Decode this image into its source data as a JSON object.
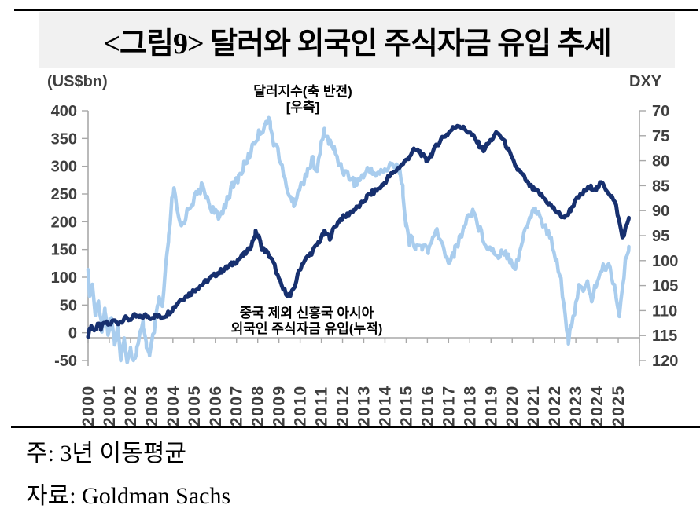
{
  "title": "<그림9> 달러와 외국인 주식자금 유입 추세",
  "footer": {
    "note": "주: 3년 이동평균",
    "source": "자료: Goldman Sachs"
  },
  "chart_data": {
    "type": "line",
    "title": "<그림9> 달러와 외국인 주식자금 유입 추세",
    "grid": false,
    "left_axis": {
      "title": "(US$bn)",
      "ticks": [
        400,
        350,
        300,
        250,
        200,
        150,
        100,
        50,
        0,
        -50
      ],
      "range": [
        -50,
        400
      ]
    },
    "right_axis": {
      "title": "DXY",
      "ticks": [
        70,
        75,
        80,
        85,
        90,
        95,
        100,
        105,
        110,
        115,
        120
      ],
      "range": [
        70,
        120
      ],
      "inverted": true
    },
    "x_axis": {
      "labels": [
        "2000",
        "2001",
        "2002",
        "2003",
        "2004",
        "2005",
        "2006",
        "2007",
        "2008",
        "2009",
        "2010",
        "2011",
        "2012",
        "2013",
        "2014",
        "2015",
        "2016",
        "2017",
        "2018",
        "2019",
        "2020",
        "2021",
        "2022",
        "2023",
        "2024",
        "2025"
      ],
      "range": [
        2000,
        2026
      ]
    },
    "colors": {
      "dollar_index": "#a9cdee",
      "flows": "#17306f",
      "legend_blue_text": "#85b2e2",
      "axis": "#a8a8a8",
      "axis_text": "#3f3f3f"
    },
    "series": [
      {
        "name": "달러지수(축 반전) [우측]",
        "label_lines": [
          "달러지수(축 반전)",
          "[우측]"
        ],
        "axis": "right",
        "unit": "DXY index (inverted axis)",
        "color": "#a9cdee",
        "points": [
          [
            2000.0,
            102.8
          ],
          [
            2000.1,
            107.8
          ],
          [
            2000.2,
            105.0
          ],
          [
            2000.35,
            111.1
          ],
          [
            2000.5,
            107.8
          ],
          [
            2000.65,
            113.3
          ],
          [
            2000.8,
            109.4
          ],
          [
            2000.95,
            115.0
          ],
          [
            2001.1,
            111.1
          ],
          [
            2001.25,
            117.2
          ],
          [
            2001.4,
            113.9
          ],
          [
            2001.55,
            119.4
          ],
          [
            2001.7,
            116.1
          ],
          [
            2001.85,
            120.3
          ],
          [
            2002.0,
            117.2
          ],
          [
            2002.15,
            120.3
          ],
          [
            2002.3,
            117.8
          ],
          [
            2002.45,
            115.0
          ],
          [
            2002.6,
            112.8
          ],
          [
            2002.75,
            116.7
          ],
          [
            2002.9,
            119.4
          ],
          [
            2003.05,
            115.6
          ],
          [
            2003.2,
            111.7
          ],
          [
            2003.35,
            107.8
          ],
          [
            2003.5,
            109.4
          ],
          [
            2003.65,
            102.2
          ],
          [
            2003.8,
            95.6
          ],
          [
            2003.95,
            88.3
          ],
          [
            2004.05,
            85.6
          ],
          [
            2004.2,
            90.6
          ],
          [
            2004.4,
            93.3
          ],
          [
            2004.6,
            91.1
          ],
          [
            2004.8,
            89.1
          ],
          [
            2004.95,
            88.0
          ],
          [
            2005.15,
            86.7
          ],
          [
            2005.35,
            85.3
          ],
          [
            2005.55,
            86.7
          ],
          [
            2005.75,
            88.9
          ],
          [
            2005.95,
            90.2
          ],
          [
            2006.15,
            91.7
          ],
          [
            2006.35,
            89.8
          ],
          [
            2006.6,
            87.2
          ],
          [
            2006.85,
            84.9
          ],
          [
            2007.1,
            83.3
          ],
          [
            2007.35,
            81.1
          ],
          [
            2007.6,
            78.9
          ],
          [
            2007.85,
            76.1
          ],
          [
            2008.05,
            74.7
          ],
          [
            2008.25,
            73.4
          ],
          [
            2008.45,
            71.7
          ],
          [
            2008.6,
            73.1
          ],
          [
            2008.75,
            76.1
          ],
          [
            2008.95,
            77.8
          ],
          [
            2009.15,
            81.7
          ],
          [
            2009.35,
            85.3
          ],
          [
            2009.55,
            87.2
          ],
          [
            2009.7,
            88.7
          ],
          [
            2009.9,
            86.1
          ],
          [
            2010.1,
            84.7
          ],
          [
            2010.35,
            81.7
          ],
          [
            2010.6,
            80.0
          ],
          [
            2010.8,
            82.2
          ],
          [
            2011.0,
            76.7
          ],
          [
            2011.15,
            74.2
          ],
          [
            2011.35,
            76.1
          ],
          [
            2011.6,
            77.8
          ],
          [
            2011.85,
            80.6
          ],
          [
            2012.1,
            82.2
          ],
          [
            2012.35,
            83.3
          ],
          [
            2012.6,
            84.4
          ],
          [
            2012.85,
            83.6
          ],
          [
            2013.1,
            82.4
          ],
          [
            2013.35,
            81.7
          ],
          [
            2013.6,
            82.8
          ],
          [
            2013.85,
            82.2
          ],
          [
            2014.1,
            81.6
          ],
          [
            2014.35,
            80.9
          ],
          [
            2014.55,
            80.6
          ],
          [
            2014.7,
            82.2
          ],
          [
            2014.85,
            86.1
          ],
          [
            2015.0,
            92.8
          ],
          [
            2015.15,
            96.7
          ],
          [
            2015.3,
            95.0
          ],
          [
            2015.45,
            98.0
          ],
          [
            2015.6,
            96.7
          ],
          [
            2015.75,
            97.8
          ],
          [
            2015.9,
            96.9
          ],
          [
            2016.05,
            98.0
          ],
          [
            2016.25,
            96.1
          ],
          [
            2016.45,
            93.9
          ],
          [
            2016.65,
            96.4
          ],
          [
            2016.85,
            98.9
          ],
          [
            2017.05,
            100.0
          ],
          [
            2017.3,
            98.0
          ],
          [
            2017.55,
            95.3
          ],
          [
            2017.8,
            92.4
          ],
          [
            2018.0,
            90.6
          ],
          [
            2018.15,
            89.8
          ],
          [
            2018.35,
            92.4
          ],
          [
            2018.55,
            94.7
          ],
          [
            2018.75,
            96.4
          ],
          [
            2018.95,
            97.6
          ],
          [
            2019.15,
            98.2
          ],
          [
            2019.35,
            98.9
          ],
          [
            2019.55,
            97.8
          ],
          [
            2019.75,
            98.7
          ],
          [
            2019.95,
            99.8
          ],
          [
            2020.15,
            101.3
          ],
          [
            2020.35,
            98.3
          ],
          [
            2020.55,
            95.0
          ],
          [
            2020.75,
            92.2
          ],
          [
            2020.95,
            90.2
          ],
          [
            2021.1,
            89.6
          ],
          [
            2021.3,
            91.3
          ],
          [
            2021.5,
            93.1
          ],
          [
            2021.7,
            94.7
          ],
          [
            2021.9,
            96.7
          ],
          [
            2022.1,
            100.0
          ],
          [
            2022.3,
            103.9
          ],
          [
            2022.5,
            111.1
          ],
          [
            2022.65,
            115.8
          ],
          [
            2022.8,
            113.6
          ],
          [
            2023.0,
            108.7
          ],
          [
            2023.15,
            104.2
          ],
          [
            2023.35,
            106.7
          ],
          [
            2023.55,
            104.7
          ],
          [
            2023.75,
            107.6
          ],
          [
            2023.95,
            104.9
          ],
          [
            2024.15,
            102.4
          ],
          [
            2024.35,
            101.3
          ],
          [
            2024.55,
            100.9
          ],
          [
            2024.75,
            103.9
          ],
          [
            2024.9,
            106.7
          ],
          [
            2025.05,
            110.9
          ],
          [
            2025.2,
            105.6
          ],
          [
            2025.35,
            100.0
          ],
          [
            2025.5,
            97.2
          ]
        ]
      },
      {
        "name": "중국 제외 신흥국 아시아 외국인 주식자금 유입(누적)",
        "label_lines": [
          "중국 제외 신흥국 아시아",
          "외국인 주식자금 유입(누적)"
        ],
        "axis": "left",
        "unit": "US$bn",
        "color": "#17306f",
        "points": [
          [
            2000.0,
            -3
          ],
          [
            2000.15,
            12
          ],
          [
            2000.3,
            4
          ],
          [
            2000.45,
            16
          ],
          [
            2000.6,
            8
          ],
          [
            2000.8,
            18
          ],
          [
            2001.0,
            14
          ],
          [
            2001.2,
            22
          ],
          [
            2001.45,
            18
          ],
          [
            2001.7,
            26
          ],
          [
            2001.95,
            24
          ],
          [
            2002.2,
            30
          ],
          [
            2002.45,
            27
          ],
          [
            2002.7,
            31
          ],
          [
            2002.95,
            28
          ],
          [
            2003.2,
            30
          ],
          [
            2003.45,
            28
          ],
          [
            2003.7,
            33
          ],
          [
            2003.9,
            40
          ],
          [
            2004.1,
            48
          ],
          [
            2004.3,
            58
          ],
          [
            2004.55,
            64
          ],
          [
            2004.8,
            70
          ],
          [
            2005.05,
            78
          ],
          [
            2005.3,
            85
          ],
          [
            2005.55,
            92
          ],
          [
            2005.8,
            99
          ],
          [
            2006.05,
            106
          ],
          [
            2006.3,
            112
          ],
          [
            2006.55,
            117
          ],
          [
            2006.8,
            124
          ],
          [
            2007.05,
            131
          ],
          [
            2007.3,
            139
          ],
          [
            2007.55,
            148
          ],
          [
            2007.75,
            163
          ],
          [
            2007.9,
            180
          ],
          [
            2008.05,
            172
          ],
          [
            2008.2,
            152
          ],
          [
            2008.4,
            146
          ],
          [
            2008.6,
            136
          ],
          [
            2008.8,
            120
          ],
          [
            2009.0,
            95
          ],
          [
            2009.2,
            78
          ],
          [
            2009.4,
            70
          ],
          [
            2009.55,
            66
          ],
          [
            2009.75,
            85
          ],
          [
            2009.95,
            112
          ],
          [
            2010.15,
            128
          ],
          [
            2010.4,
            138
          ],
          [
            2010.65,
            150
          ],
          [
            2010.9,
            165
          ],
          [
            2011.15,
            180
          ],
          [
            2011.4,
            172
          ],
          [
            2011.65,
            192
          ],
          [
            2011.9,
            205
          ],
          [
            2012.15,
            210
          ],
          [
            2012.4,
            218
          ],
          [
            2012.65,
            224
          ],
          [
            2012.9,
            232
          ],
          [
            2013.15,
            245
          ],
          [
            2013.4,
            252
          ],
          [
            2013.65,
            258
          ],
          [
            2013.9,
            266
          ],
          [
            2014.15,
            280
          ],
          [
            2014.4,
            288
          ],
          [
            2014.65,
            298
          ],
          [
            2014.9,
            306
          ],
          [
            2015.15,
            318
          ],
          [
            2015.4,
            330
          ],
          [
            2015.65,
            326
          ],
          [
            2015.95,
            310
          ],
          [
            2016.2,
            322
          ],
          [
            2016.45,
            338
          ],
          [
            2016.7,
            352
          ],
          [
            2016.95,
            358
          ],
          [
            2017.2,
            368
          ],
          [
            2017.45,
            375
          ],
          [
            2017.7,
            368
          ],
          [
            2017.95,
            362
          ],
          [
            2018.2,
            352
          ],
          [
            2018.45,
            338
          ],
          [
            2018.65,
            330
          ],
          [
            2018.9,
            342
          ],
          [
            2019.1,
            352
          ],
          [
            2019.3,
            360
          ],
          [
            2019.5,
            352
          ],
          [
            2019.75,
            335
          ],
          [
            2020.0,
            312
          ],
          [
            2020.25,
            295
          ],
          [
            2020.5,
            283
          ],
          [
            2020.75,
            268
          ],
          [
            2021.0,
            258
          ],
          [
            2021.25,
            252
          ],
          [
            2021.5,
            242
          ],
          [
            2021.75,
            232
          ],
          [
            2022.0,
            222
          ],
          [
            2022.25,
            212
          ],
          [
            2022.5,
            208
          ],
          [
            2022.75,
            222
          ],
          [
            2023.0,
            238
          ],
          [
            2023.25,
            248
          ],
          [
            2023.5,
            258
          ],
          [
            2023.75,
            262
          ],
          [
            2024.0,
            260
          ],
          [
            2024.2,
            270
          ],
          [
            2024.45,
            258
          ],
          [
            2024.7,
            245
          ],
          [
            2024.9,
            228
          ],
          [
            2025.05,
            200
          ],
          [
            2025.2,
            171
          ],
          [
            2025.35,
            188
          ],
          [
            2025.5,
            207
          ]
        ]
      }
    ],
    "annotations": {
      "legend_position": "top-center-inside",
      "series_label_position": "bottom-center-inside"
    }
  }
}
